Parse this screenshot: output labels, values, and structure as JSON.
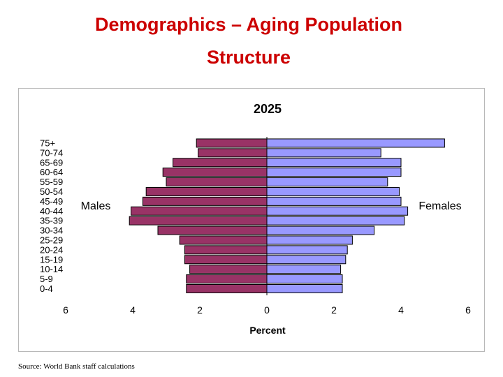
{
  "slide": {
    "title_line1": "Demographics – Aging Population",
    "title_line2": "Structure",
    "source": "Source: World Bank staff calculations"
  },
  "colors": {
    "title": "#cc0000",
    "males": "#993366",
    "females": "#9999ff",
    "outline": "#000000"
  },
  "chart_data": {
    "type": "bar",
    "orientation": "horizontal-population-pyramid",
    "title": "2025",
    "xlabel": "Percent",
    "xlim": [
      -6,
      6
    ],
    "xticks": [
      "6",
      "4",
      "2",
      "0",
      "2",
      "4",
      "6"
    ],
    "grid": false,
    "categories": [
      "75+",
      "70-74",
      "65-69",
      "60-64",
      "55-59",
      "50-54",
      "45-49",
      "40-44",
      "35-39",
      "30-34",
      "25-29",
      "20-24",
      "15-19",
      "10-14",
      "5-9",
      "0-4"
    ],
    "series": [
      {
        "name": "Males",
        "values": [
          2.1,
          2.05,
          2.8,
          3.1,
          3.0,
          3.6,
          3.7,
          4.05,
          4.1,
          3.25,
          2.6,
          2.45,
          2.45,
          2.3,
          2.4,
          2.4
        ]
      },
      {
        "name": "Females",
        "values": [
          5.3,
          3.4,
          4.0,
          4.0,
          3.6,
          3.95,
          4.0,
          4.2,
          4.1,
          3.2,
          2.55,
          2.4,
          2.35,
          2.2,
          2.25,
          2.25
        ]
      }
    ]
  }
}
